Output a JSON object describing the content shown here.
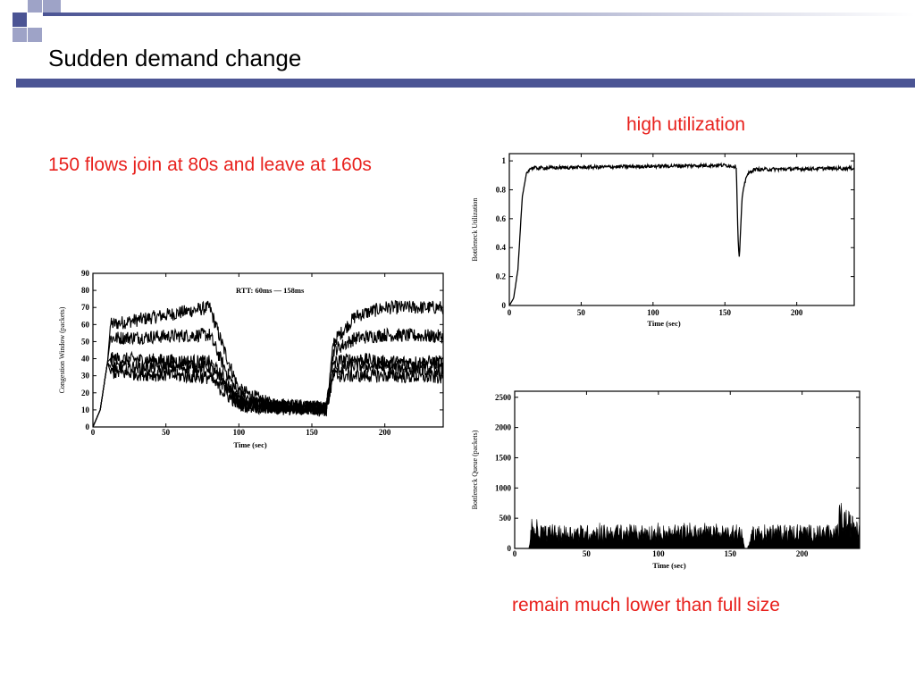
{
  "slide": {
    "title": "Sudden demand change",
    "colors": {
      "accent": "#4b5494",
      "accent_light": "#9ea3c7",
      "annotation": "#e8211d"
    }
  },
  "annotations": {
    "left": "150 flows join at 80s and leave at 160s",
    "top_right": "high utilization",
    "bottom_right": "remain much lower than full size"
  },
  "chart_data": [
    {
      "type": "line",
      "ylabel": "Congestion Window (packets)",
      "xlabel": "Time (sec)",
      "legend": "RTT: 60ms — 158ms",
      "legend_position": "top-center",
      "xlim": [
        0,
        240
      ],
      "ylim": [
        0,
        90
      ],
      "xticks": [
        "0",
        "50",
        "100",
        "150",
        "200"
      ],
      "yticks": [
        "0",
        "10",
        "20",
        "30",
        "40",
        "50",
        "60",
        "70",
        "80",
        "90"
      ],
      "grid": false,
      "series": [
        {
          "x": [
            0,
            5,
            10,
            12,
            80,
            90,
            100,
            120,
            160,
            165,
            180,
            200,
            240
          ],
          "values": [
            0,
            10,
            38,
            60,
            70,
            45,
            22,
            14,
            11,
            50,
            65,
            70,
            70
          ]
        },
        {
          "x": [
            0,
            5,
            10,
            12,
            80,
            90,
            100,
            120,
            160,
            165,
            180,
            200,
            240
          ],
          "values": [
            0,
            10,
            38,
            52,
            54,
            35,
            18,
            13,
            11,
            45,
            52,
            54,
            53
          ]
        },
        {
          "x": [
            0,
            5,
            10,
            12,
            80,
            90,
            100,
            120,
            160,
            165,
            180,
            200,
            240
          ],
          "values": [
            0,
            10,
            38,
            40,
            38,
            28,
            15,
            12,
            11,
            38,
            40,
            38,
            38
          ]
        },
        {
          "x": [
            0,
            5,
            10,
            12,
            80,
            90,
            100,
            120,
            160,
            165,
            180,
            200,
            240
          ],
          "values": [
            0,
            10,
            38,
            35,
            35,
            24,
            14,
            11,
            11,
            33,
            36,
            35,
            34
          ]
        },
        {
          "x": [
            0,
            5,
            10,
            12,
            80,
            90,
            100,
            120,
            160,
            165,
            180,
            200,
            240
          ],
          "values": [
            0,
            10,
            38,
            32,
            29,
            20,
            13,
            11,
            10,
            30,
            30,
            30,
            29
          ]
        }
      ]
    },
    {
      "type": "line",
      "ylabel": "Bottleneck Utilization",
      "xlabel": "Time (sec)",
      "xlim": [
        0,
        240
      ],
      "ylim": [
        0,
        1.05
      ],
      "xticks": [
        "0",
        "50",
        "100",
        "150",
        "200"
      ],
      "yticks": [
        "0",
        "0.2",
        "0.4",
        "0.6",
        "0.8",
        "1"
      ],
      "grid": false,
      "series": [
        {
          "x": [
            0,
            3,
            6,
            9,
            12,
            15,
            80,
            150,
            158,
            159,
            160,
            162,
            165,
            170,
            240
          ],
          "values": [
            0,
            0.05,
            0.25,
            0.75,
            0.92,
            0.95,
            0.96,
            0.97,
            0.96,
            0.5,
            0.32,
            0.75,
            0.9,
            0.94,
            0.95
          ]
        }
      ]
    },
    {
      "type": "area",
      "ylabel": "Bottleneck Queue (packets)",
      "xlabel": "Time (sec)",
      "xlim": [
        0,
        240
      ],
      "ylim": [
        0,
        2600
      ],
      "xticks": [
        "0",
        "50",
        "100",
        "150",
        "200"
      ],
      "yticks": [
        "0",
        "500",
        "1000",
        "1500",
        "2000",
        "2500"
      ],
      "grid": false,
      "series": [
        {
          "x": [
            0,
            10,
            12,
            14,
            20,
            80,
            150,
            158,
            160,
            162,
            166,
            200,
            225,
            226,
            240
          ],
          "values": [
            0,
            0,
            420,
            300,
            250,
            260,
            250,
            260,
            0,
            0,
            250,
            260,
            250,
            520,
            260
          ]
        }
      ]
    }
  ]
}
